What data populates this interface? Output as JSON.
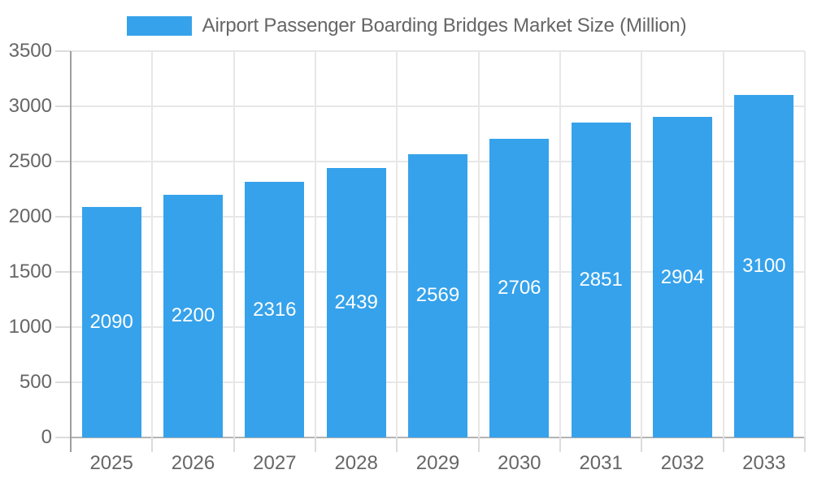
{
  "chart_data": {
    "type": "bar",
    "title": "",
    "categories": [
      "2025",
      "2026",
      "2027",
      "2028",
      "2029",
      "2030",
      "2031",
      "2032",
      "2033"
    ],
    "series": [
      {
        "name": "Airport Passenger Boarding Bridges Market Size (Million)",
        "values": [
          2090,
          2200,
          2316,
          2439,
          2569,
          2706,
          2851,
          2904,
          3100
        ]
      }
    ],
    "xlabel": "",
    "ylabel": "",
    "ylim": [
      0,
      3500
    ],
    "yticks": [
      0,
      500,
      1000,
      1500,
      2000,
      2500,
      3000,
      3500
    ],
    "grid": true,
    "legend_position": "top",
    "data_labels": {
      "position": "inside-center",
      "color": "#ffffff"
    },
    "colors": {
      "bar": "#36A2EB",
      "text": "#666666",
      "grid": "#e7e7e7",
      "tick": "#dcdcdc",
      "y_axis_line": "#9e9e9e",
      "x_axis_line": "#b3b3b3",
      "value_label": "#ffffff",
      "background": "#ffffff"
    }
  }
}
